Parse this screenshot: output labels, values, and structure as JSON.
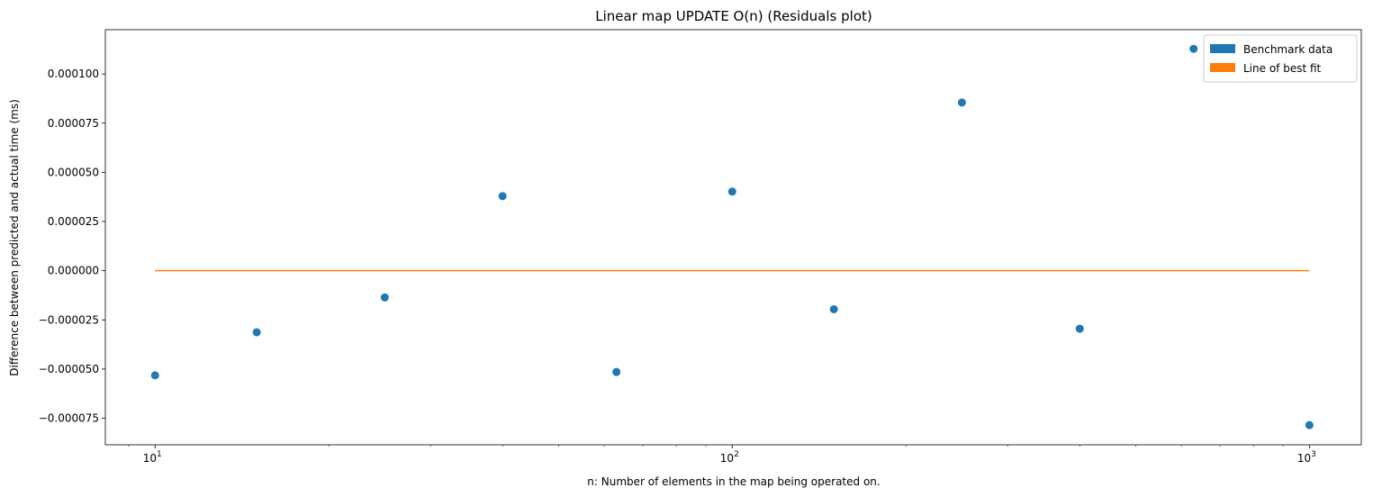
{
  "chart_data": {
    "type": "scatter",
    "title": "Linear map UPDATE O(n)  (Residuals plot)",
    "xlabel": "n: Number of elements in the map being operated on.",
    "ylabel": "Difference between predicted and actual time (ms)",
    "xscale": "log",
    "xlim": [
      8.2,
      1230
    ],
    "ylim": [
      -8.85e-05,
      0.0001225
    ],
    "x_ticks": [
      {
        "value": 10,
        "base": "10",
        "exp": "1"
      },
      {
        "value": 100,
        "base": "10",
        "exp": "2"
      },
      {
        "value": 1000,
        "base": "10",
        "exp": "3"
      }
    ],
    "y_ticks": [
      {
        "value": -7.5e-05,
        "label": "−0.000075"
      },
      {
        "value": -5e-05,
        "label": "−0.000050"
      },
      {
        "value": -2.5e-05,
        "label": "−0.000025"
      },
      {
        "value": 0,
        "label": "0.000000"
      },
      {
        "value": 2.5e-05,
        "label": "0.000025"
      },
      {
        "value": 5e-05,
        "label": "0.000050"
      },
      {
        "value": 7.5e-05,
        "label": "0.000075"
      },
      {
        "value": 0.0001,
        "label": "0.000100"
      }
    ],
    "grid": false,
    "legend_position": "upper-right",
    "series": [
      {
        "name": "Benchmark data",
        "type": "scatter",
        "color": "#1f77b4",
        "x": [
          10,
          15,
          25,
          40,
          63,
          100,
          150,
          250,
          400,
          630,
          1000
        ],
        "y": [
          -5.32e-05,
          -3.13e-05,
          -1.36e-05,
          3.79e-05,
          -5.15e-05,
          4.02e-05,
          -1.96e-05,
          8.55e-05,
          -2.95e-05,
          0.0001128,
          -7.85e-05
        ]
      },
      {
        "name": "Line of best fit",
        "type": "line",
        "color": "#ff7f0e",
        "x": [
          10,
          1000
        ],
        "y": [
          0,
          0
        ]
      }
    ]
  }
}
